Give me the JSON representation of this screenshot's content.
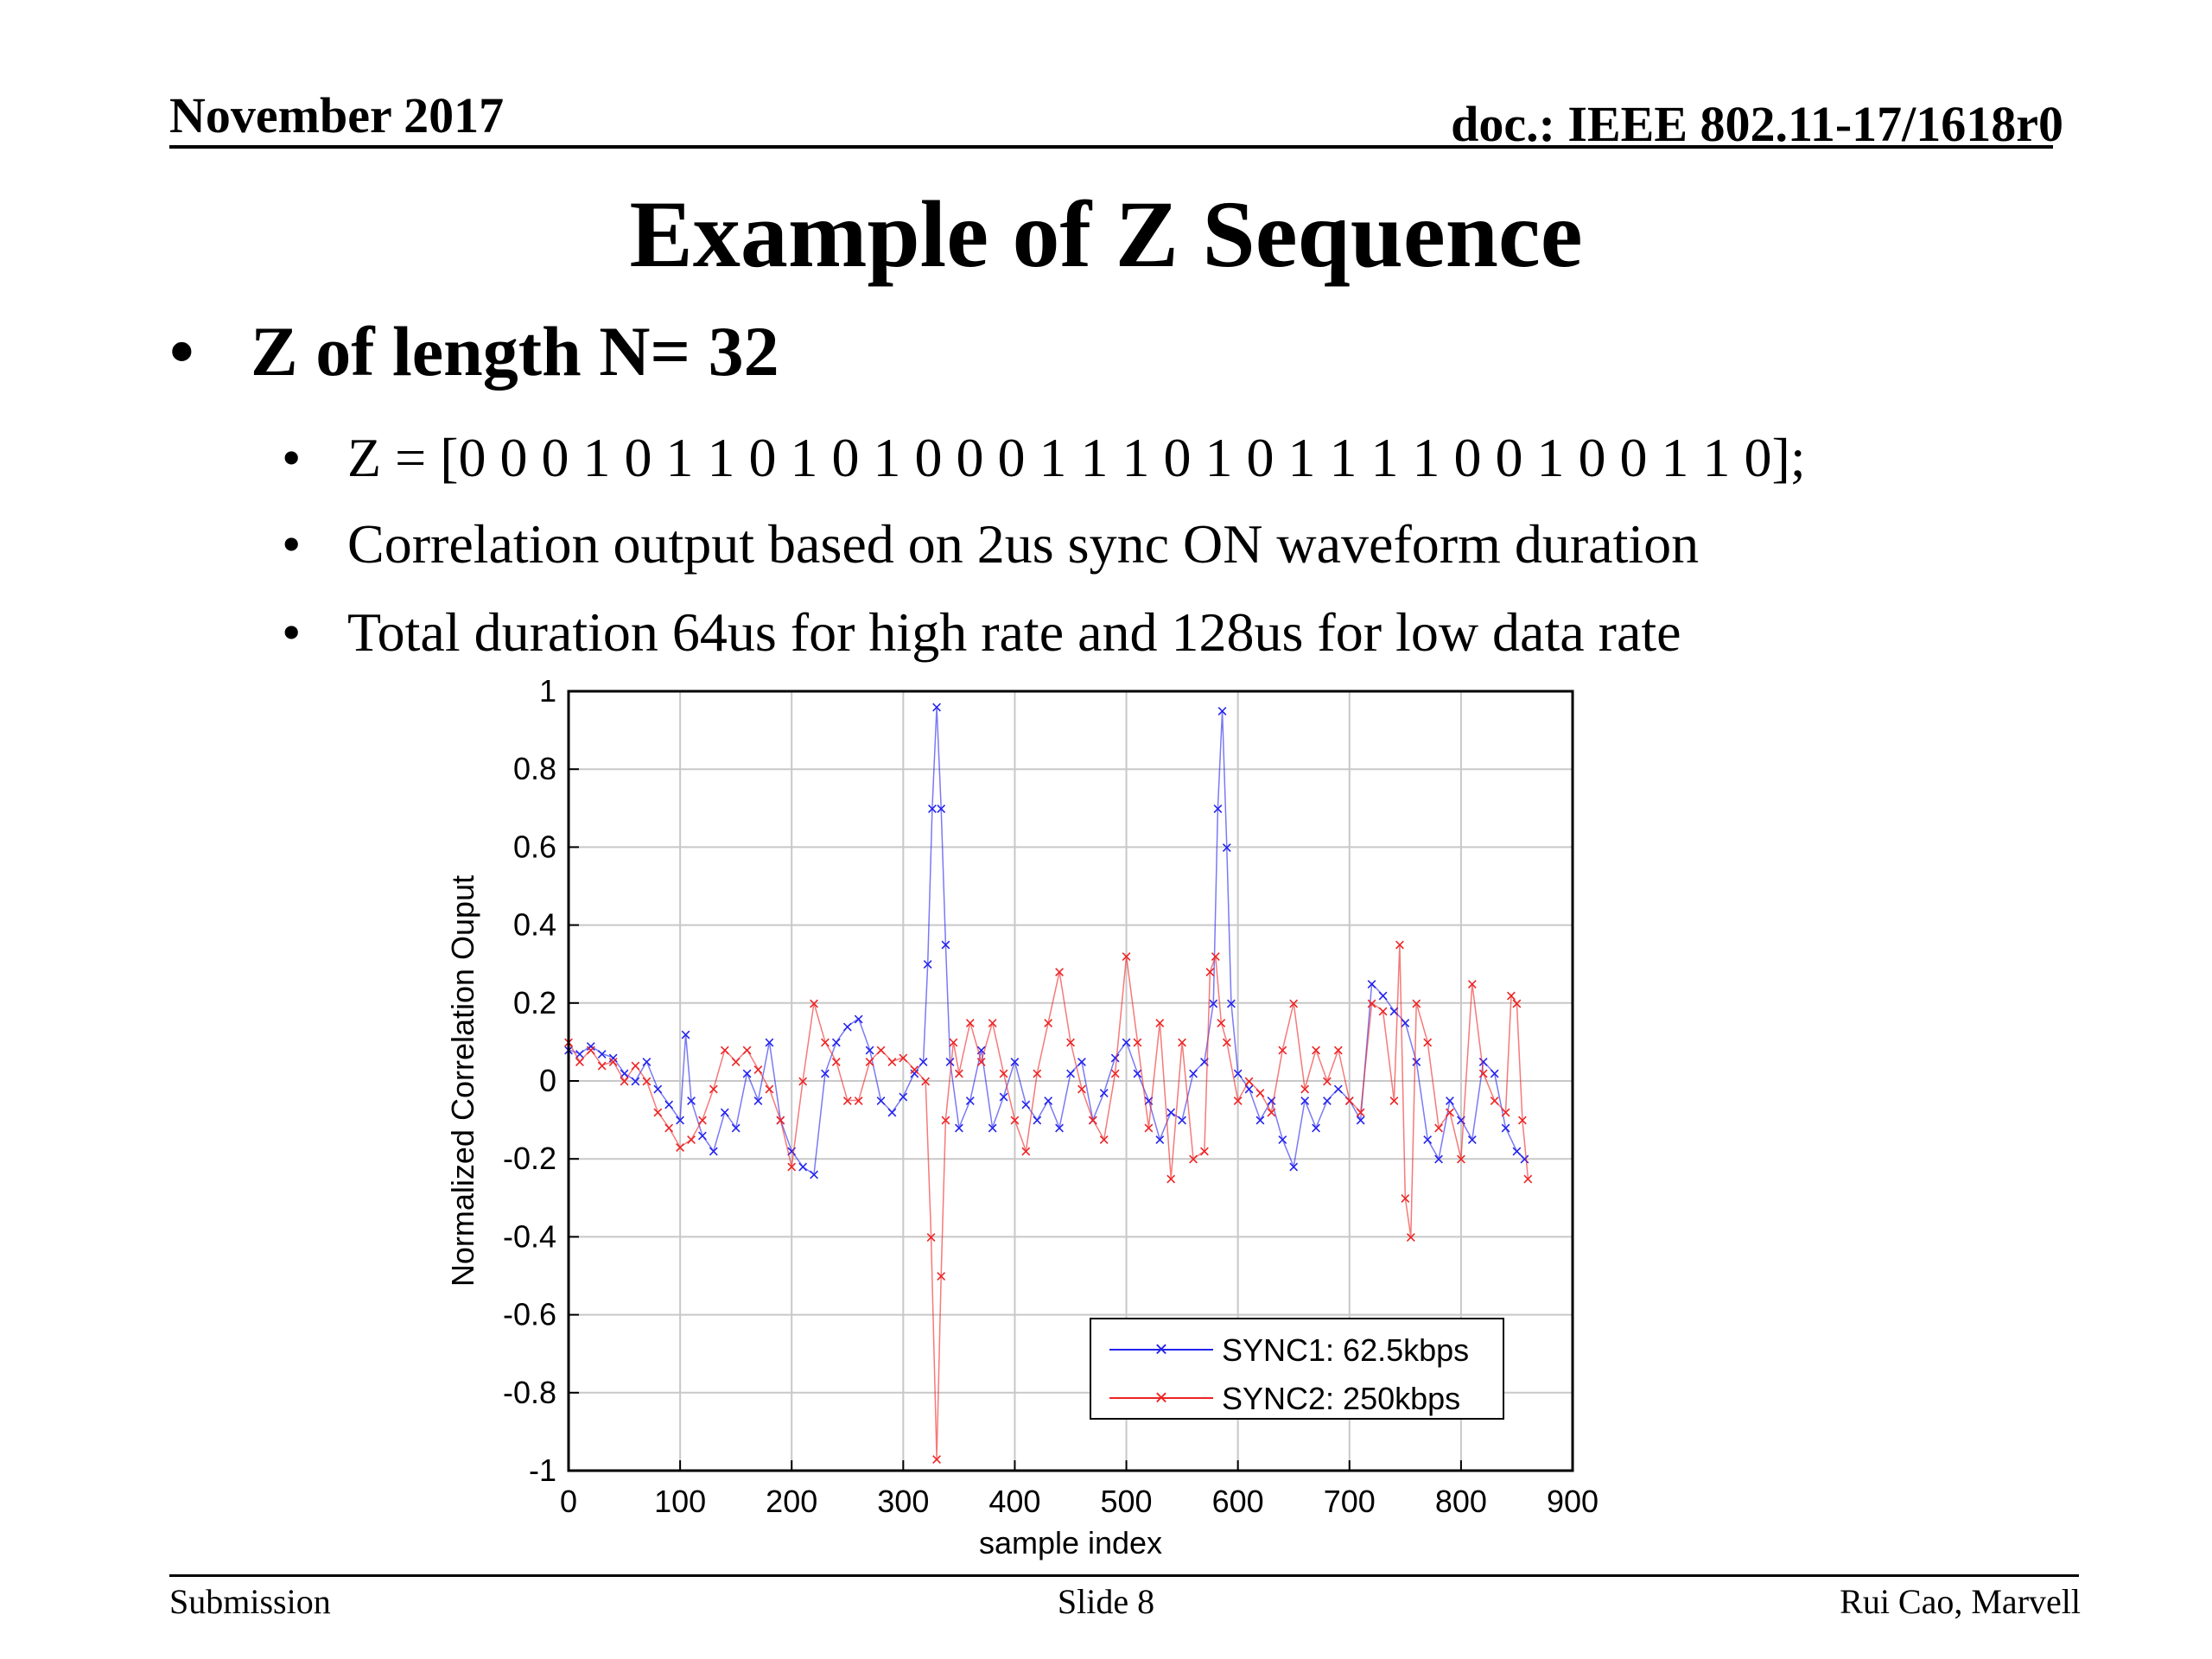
{
  "header": {
    "date": "November 2017",
    "doc": "doc.: IEEE 802.11-17/1618r0"
  },
  "title": "Example of Z Sequence",
  "bullets": {
    "main": "Z of length N= 32",
    "subs": [
      "Z = [0 0 0 1 0 1 1 0 1 0 1 0 0 0 1 1 1 0 1 0 1 1 1 1 0 0 1 0 0 1 1 0];",
      "Correlation output based on 2us sync ON waveform duration",
      "Total duration 64us for high rate and 128us for low data rate"
    ]
  },
  "chart_data": {
    "type": "line",
    "xlabel": "sample index",
    "ylabel": "Normalized Correlation Ouput",
    "xlim": [
      0,
      900
    ],
    "ylim": [
      -1,
      1
    ],
    "xticks": [
      "0",
      "100",
      "200",
      "300",
      "400",
      "500",
      "600",
      "700",
      "800",
      "900"
    ],
    "yticks": [
      "-1",
      "-0.8",
      "-0.6",
      "-0.4",
      "-0.2",
      "0",
      "0.2",
      "0.4",
      "0.6",
      "0.8",
      "1"
    ],
    "grid": true,
    "legend_position": "bottom-right",
    "series": [
      {
        "name": "SYNC1: 62.5kbps",
        "color": "#2222ee",
        "marker": "x",
        "points": [
          [
            0,
            0.08
          ],
          [
            10,
            0.07
          ],
          [
            20,
            0.09
          ],
          [
            30,
            0.07
          ],
          [
            40,
            0.06
          ],
          [
            50,
            0.02
          ],
          [
            60,
            0.0
          ],
          [
            70,
            0.05
          ],
          [
            80,
            -0.02
          ],
          [
            90,
            -0.06
          ],
          [
            100,
            -0.1
          ],
          [
            105,
            0.12
          ],
          [
            110,
            -0.05
          ],
          [
            120,
            -0.14
          ],
          [
            130,
            -0.18
          ],
          [
            140,
            -0.08
          ],
          [
            150,
            -0.12
          ],
          [
            160,
            0.02
          ],
          [
            170,
            -0.05
          ],
          [
            180,
            0.1
          ],
          [
            190,
            -0.1
          ],
          [
            200,
            -0.18
          ],
          [
            210,
            -0.22
          ],
          [
            220,
            -0.24
          ],
          [
            230,
            0.02
          ],
          [
            240,
            0.1
          ],
          [
            250,
            0.14
          ],
          [
            260,
            0.16
          ],
          [
            270,
            0.08
          ],
          [
            280,
            -0.05
          ],
          [
            290,
            -0.08
          ],
          [
            300,
            -0.04
          ],
          [
            310,
            0.02
          ],
          [
            318,
            0.05
          ],
          [
            322,
            0.3
          ],
          [
            326,
            0.7
          ],
          [
            330,
            0.96
          ],
          [
            334,
            0.7
          ],
          [
            338,
            0.35
          ],
          [
            342,
            0.05
          ],
          [
            350,
            -0.12
          ],
          [
            360,
            -0.05
          ],
          [
            370,
            0.08
          ],
          [
            380,
            -0.12
          ],
          [
            390,
            -0.04
          ],
          [
            400,
            0.05
          ],
          [
            410,
            -0.06
          ],
          [
            420,
            -0.1
          ],
          [
            430,
            -0.05
          ],
          [
            440,
            -0.12
          ],
          [
            450,
            0.02
          ],
          [
            460,
            0.05
          ],
          [
            470,
            -0.1
          ],
          [
            480,
            -0.03
          ],
          [
            490,
            0.06
          ],
          [
            500,
            0.1
          ],
          [
            510,
            0.02
          ],
          [
            520,
            -0.05
          ],
          [
            530,
            -0.15
          ],
          [
            540,
            -0.08
          ],
          [
            550,
            -0.1
          ],
          [
            560,
            0.02
          ],
          [
            570,
            0.05
          ],
          [
            578,
            0.2
          ],
          [
            582,
            0.7
          ],
          [
            586,
            0.95
          ],
          [
            590,
            0.6
          ],
          [
            594,
            0.2
          ],
          [
            600,
            0.02
          ],
          [
            610,
            -0.02
          ],
          [
            620,
            -0.1
          ],
          [
            630,
            -0.05
          ],
          [
            640,
            -0.15
          ],
          [
            650,
            -0.22
          ],
          [
            660,
            -0.05
          ],
          [
            670,
            -0.12
          ],
          [
            680,
            -0.05
          ],
          [
            690,
            -0.02
          ],
          [
            700,
            -0.05
          ],
          [
            710,
            -0.1
          ],
          [
            720,
            0.25
          ],
          [
            730,
            0.22
          ],
          [
            740,
            0.18
          ],
          [
            750,
            0.15
          ],
          [
            760,
            0.05
          ],
          [
            770,
            -0.15
          ],
          [
            780,
            -0.2
          ],
          [
            790,
            -0.05
          ],
          [
            800,
            -0.1
          ],
          [
            810,
            -0.15
          ],
          [
            820,
            0.05
          ],
          [
            830,
            0.02
          ],
          [
            840,
            -0.12
          ],
          [
            850,
            -0.18
          ],
          [
            857,
            -0.2
          ]
        ]
      },
      {
        "name": "SYNC2: 250kbps",
        "color": "#ee2222",
        "marker": "x",
        "points": [
          [
            0,
            0.1
          ],
          [
            10,
            0.05
          ],
          [
            20,
            0.08
          ],
          [
            30,
            0.04
          ],
          [
            40,
            0.05
          ],
          [
            50,
            0.0
          ],
          [
            60,
            0.04
          ],
          [
            70,
            0.0
          ],
          [
            80,
            -0.08
          ],
          [
            90,
            -0.12
          ],
          [
            100,
            -0.17
          ],
          [
            110,
            -0.15
          ],
          [
            120,
            -0.1
          ],
          [
            130,
            -0.02
          ],
          [
            140,
            0.08
          ],
          [
            150,
            0.05
          ],
          [
            160,
            0.08
          ],
          [
            170,
            0.03
          ],
          [
            180,
            -0.02
          ],
          [
            190,
            -0.1
          ],
          [
            200,
            -0.22
          ],
          [
            210,
            0.0
          ],
          [
            220,
            0.2
          ],
          [
            230,
            0.1
          ],
          [
            240,
            0.05
          ],
          [
            250,
            -0.05
          ],
          [
            260,
            -0.05
          ],
          [
            270,
            0.05
          ],
          [
            280,
            0.08
          ],
          [
            290,
            0.05
          ],
          [
            300,
            0.06
          ],
          [
            310,
            0.03
          ],
          [
            320,
            0.0
          ],
          [
            325,
            -0.4
          ],
          [
            330,
            -0.97
          ],
          [
            334,
            -0.5
          ],
          [
            338,
            -0.1
          ],
          [
            345,
            0.1
          ],
          [
            350,
            0.02
          ],
          [
            360,
            0.15
          ],
          [
            370,
            0.05
          ],
          [
            380,
            0.15
          ],
          [
            390,
            0.02
          ],
          [
            400,
            -0.1
          ],
          [
            410,
            -0.18
          ],
          [
            420,
            0.02
          ],
          [
            430,
            0.15
          ],
          [
            440,
            0.28
          ],
          [
            450,
            0.1
          ],
          [
            460,
            -0.02
          ],
          [
            470,
            -0.1
          ],
          [
            480,
            -0.15
          ],
          [
            490,
            0.02
          ],
          [
            500,
            0.32
          ],
          [
            510,
            0.1
          ],
          [
            520,
            -0.12
          ],
          [
            530,
            0.15
          ],
          [
            540,
            -0.25
          ],
          [
            550,
            0.1
          ],
          [
            560,
            -0.2
          ],
          [
            570,
            -0.18
          ],
          [
            575,
            0.28
          ],
          [
            580,
            0.32
          ],
          [
            585,
            0.15
          ],
          [
            590,
            0.1
          ],
          [
            600,
            -0.05
          ],
          [
            610,
            0.0
          ],
          [
            620,
            -0.03
          ],
          [
            630,
            -0.08
          ],
          [
            640,
            0.08
          ],
          [
            650,
            0.2
          ],
          [
            660,
            -0.02
          ],
          [
            670,
            0.08
          ],
          [
            680,
            0.0
          ],
          [
            690,
            0.08
          ],
          [
            700,
            -0.05
          ],
          [
            710,
            -0.08
          ],
          [
            720,
            0.2
          ],
          [
            730,
            0.18
          ],
          [
            740,
            -0.05
          ],
          [
            745,
            0.35
          ],
          [
            750,
            -0.3
          ],
          [
            755,
            -0.4
          ],
          [
            760,
            0.2
          ],
          [
            770,
            0.1
          ],
          [
            780,
            -0.12
          ],
          [
            790,
            -0.08
          ],
          [
            800,
            -0.2
          ],
          [
            810,
            0.25
          ],
          [
            820,
            0.02
          ],
          [
            830,
            -0.05
          ],
          [
            840,
            -0.08
          ],
          [
            845,
            0.22
          ],
          [
            850,
            0.2
          ],
          [
            855,
            -0.1
          ],
          [
            860,
            -0.25
          ]
        ]
      }
    ]
  },
  "footer": {
    "left": "Submission",
    "center": "Slide 8",
    "right": "Rui Cao, Marvell"
  }
}
